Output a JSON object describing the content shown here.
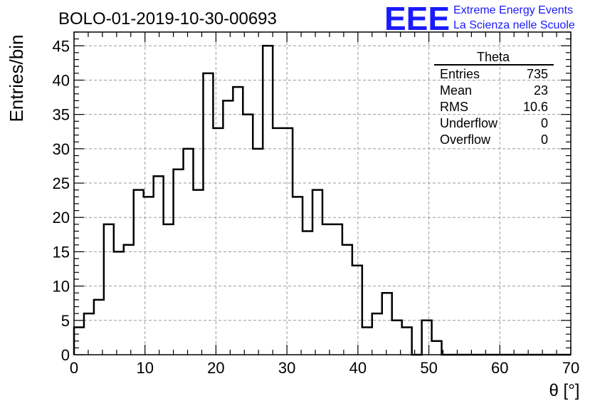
{
  "header": {
    "run_title": "BOLO-01-2019-10-30-00693",
    "logo_text": "EEE",
    "logo_line1": "Extreme Energy Events",
    "logo_line2": "La Scienza nelle Scuole"
  },
  "stats": {
    "title": "Theta",
    "rows": [
      {
        "label": "Entries",
        "value": "735"
      },
      {
        "label": "Mean",
        "value": "23"
      },
      {
        "label": "RMS",
        "value": "10.6"
      },
      {
        "label": "Underflow",
        "value": "0"
      },
      {
        "label": "Overflow",
        "value": "0"
      }
    ]
  },
  "colors": {
    "logo": "#1a1aff",
    "line": "#000000",
    "grid": "#9a9a9a"
  },
  "chart_data": {
    "type": "histogram",
    "xlabel": "θ [°]",
    "ylabel": "Entries/bin",
    "xlim": [
      0,
      70
    ],
    "ylim": [
      0,
      47
    ],
    "grid": true,
    "x_ticks": [
      0,
      10,
      20,
      30,
      40,
      50,
      60,
      70
    ],
    "y_ticks": [
      0,
      5,
      10,
      15,
      20,
      25,
      30,
      35,
      40,
      45
    ],
    "bin_width": 1.4,
    "bin_start": 0,
    "values": [
      4,
      6,
      8,
      19,
      15,
      16,
      24,
      23,
      26,
      19,
      27,
      30,
      24,
      41,
      33,
      37,
      39,
      35,
      30,
      45,
      33,
      33,
      23,
      18,
      24,
      19,
      19,
      16,
      13,
      4,
      6,
      9,
      5,
      4,
      0,
      5,
      2,
      0,
      0,
      0,
      0,
      0,
      0,
      0,
      0,
      0,
      0,
      0,
      0,
      0
    ]
  }
}
